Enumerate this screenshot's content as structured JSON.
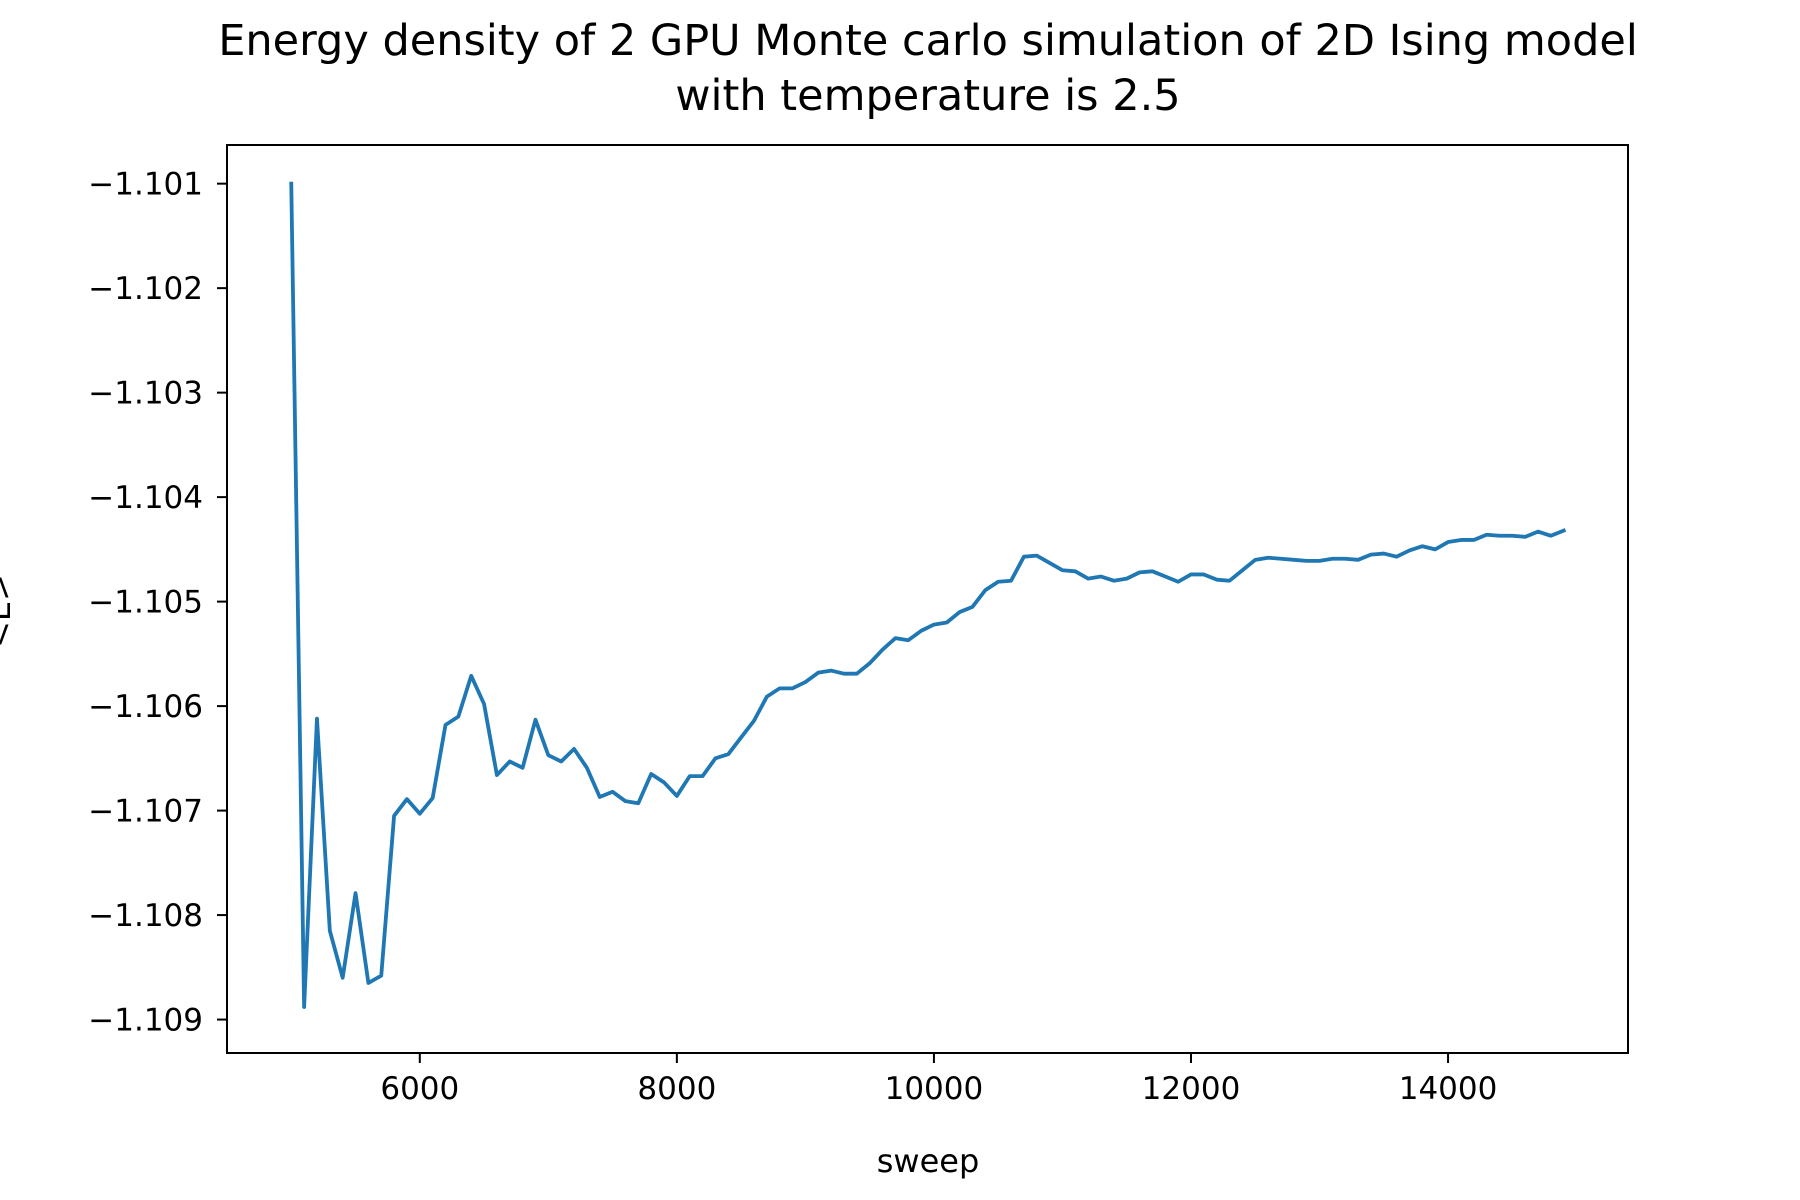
{
  "chart_data": {
    "type": "line",
    "title": "Energy density of 2 GPU Monte carlo simulation of 2D Ising model",
    "subtitle": "with temperature is 2.5",
    "xlabel": "sweep",
    "ylabel": "<E>",
    "xlim": [
      4500,
      15400
    ],
    "ylim": [
      -1.10932,
      -1.10063
    ],
    "xticks": [
      6000,
      8000,
      10000,
      12000,
      14000
    ],
    "xtick_labels": [
      "6000",
      "8000",
      "10000",
      "12000",
      "14000"
    ],
    "yticks": [
      -1.101,
      -1.102,
      -1.103,
      -1.104,
      -1.105,
      -1.106,
      -1.107,
      -1.108,
      -1.109
    ],
    "ytick_labels": [
      "−1.101",
      "−1.102",
      "−1.103",
      "−1.104",
      "−1.105",
      "−1.106",
      "−1.107",
      "−1.108",
      "−1.109"
    ],
    "grid": false,
    "line_color": "#1f77b4",
    "series": [
      {
        "x": [
          5000,
          5100,
          5200,
          5300,
          5400,
          5500,
          5600,
          5700,
          5800,
          5900,
          6000,
          6100,
          6200,
          6300,
          6400,
          6500,
          6600,
          6700,
          6800,
          6900,
          7000,
          7100,
          7200,
          7300,
          7400,
          7500,
          7600,
          7700,
          7800,
          7900,
          8000,
          8100,
          8200,
          8300,
          8400,
          8500,
          8600,
          8700,
          8800,
          8900,
          9000,
          9100,
          9200,
          9300,
          9400,
          9500,
          9600,
          9700,
          9800,
          9900,
          10000,
          10100,
          10200,
          10300,
          10400,
          10500,
          10600,
          10700,
          10800,
          10900,
          11000,
          11100,
          11200,
          11300,
          11400,
          11500,
          11600,
          11700,
          11800,
          11900,
          12000,
          12100,
          12200,
          12300,
          12400,
          12500,
          12600,
          12700,
          12800,
          12900,
          13000,
          13100,
          13200,
          13300,
          13400,
          13500,
          13600,
          13700,
          13800,
          13900,
          14000,
          14100,
          14200,
          14300,
          14400,
          14500,
          14600,
          14700,
          14800,
          14900
        ],
        "y": [
          -1.101,
          -1.10888,
          -1.10612,
          -1.10815,
          -1.1086,
          -1.10779,
          -1.10865,
          -1.10858,
          -1.10705,
          -1.10689,
          -1.10703,
          -1.10688,
          -1.10618,
          -1.1061,
          -1.10571,
          -1.10598,
          -1.10666,
          -1.10653,
          -1.10659,
          -1.10613,
          -1.10647,
          -1.10653,
          -1.10641,
          -1.10659,
          -1.10687,
          -1.10682,
          -1.10691,
          -1.10693,
          -1.10665,
          -1.10673,
          -1.10686,
          -1.10667,
          -1.10667,
          -1.1065,
          -1.10646,
          -1.1063,
          -1.10614,
          -1.10591,
          -1.10583,
          -1.10583,
          -1.10577,
          -1.10568,
          -1.10566,
          -1.10569,
          -1.10569,
          -1.10559,
          -1.10546,
          -1.10535,
          -1.10537,
          -1.10528,
          -1.10522,
          -1.1052,
          -1.1051,
          -1.10505,
          -1.10489,
          -1.10481,
          -1.1048,
          -1.10457,
          -1.10456,
          -1.10463,
          -1.1047,
          -1.10471,
          -1.10478,
          -1.10476,
          -1.1048,
          -1.10478,
          -1.10472,
          -1.10471,
          -1.10476,
          -1.10481,
          -1.10474,
          -1.10474,
          -1.10479,
          -1.1048,
          -1.1047,
          -1.1046,
          -1.10458,
          -1.10459,
          -1.1046,
          -1.10461,
          -1.10461,
          -1.10459,
          -1.10459,
          -1.1046,
          -1.10455,
          -1.10454,
          -1.10457,
          -1.10451,
          -1.10447,
          -1.1045,
          -1.10443,
          -1.10441,
          -1.10441,
          -1.10436,
          -1.10437,
          -1.10437,
          -1.10438,
          -1.10433,
          -1.10437,
          -1.10432
        ]
      }
    ]
  }
}
